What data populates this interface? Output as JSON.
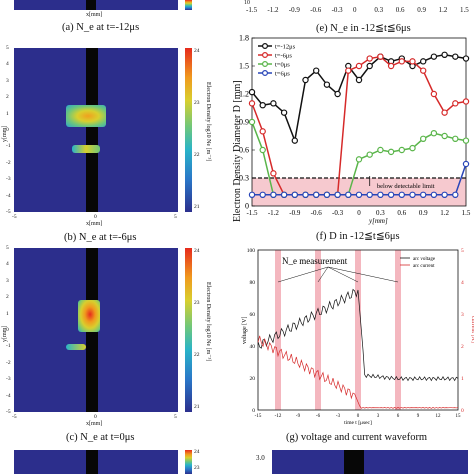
{
  "panel_a": {
    "caption": "(a) N_e at t=-12μs",
    "xaxis_label": "x[mm]"
  },
  "panel_b": {
    "caption": "(b) N_e at t=-6μs",
    "xaxis_label": "x[mm]",
    "yaxis_label": "y[mm]",
    "colorbar_label": "Electron Density log10 Ne [m⁻³]",
    "y_ticks": [
      "5",
      "4",
      "3",
      "2",
      "1",
      "0",
      "-1",
      "-2",
      "-3",
      "-4",
      "-5"
    ],
    "x_ticks": [
      "-5",
      "0",
      "5"
    ],
    "colorbar_ticks": [
      "24",
      "23",
      "22",
      "21"
    ]
  },
  "panel_c": {
    "caption": "(c) N_e at t=0μs",
    "xaxis_label": "x[mm]",
    "yaxis_label": "y[mm]",
    "colorbar_label": "Electron Density log10 Ne [m⁻³]",
    "y_ticks": [
      "5",
      "4",
      "3",
      "2",
      "1",
      "0",
      "-1",
      "-2",
      "-3",
      "-4",
      "-5"
    ],
    "x_ticks": [
      "-5",
      "0",
      "5"
    ],
    "colorbar_ticks": [
      "24",
      "23",
      "22",
      "21"
    ]
  },
  "panel_bottom_left": {
    "colorbar_ticks": [
      "24",
      "23"
    ]
  },
  "panel_e": {
    "caption": "(e) N_e in -12≦t≦6μs",
    "top_axis_ticks": [
      "-1.5",
      "-1.2",
      "-0.9",
      "-0.6",
      "-0.3",
      "0",
      "0.3",
      "0.6",
      "0.9",
      "1.2",
      "1.5"
    ],
    "top_exponent": "10"
  },
  "panel_f": {
    "caption": "(f) D in -12≦t≦6μs",
    "annotation": "below detectable limit"
  },
  "panel_g": {
    "caption": "(g) voltage and current waveform",
    "annotation": "N_e measurement",
    "ylabel_left": "voltage [V]",
    "ylabel_right": "current [A]",
    "xlabel": "time t [μsec]",
    "legend": [
      "arc voltage",
      "arc current"
    ],
    "y_ticks_left": [
      "0",
      "20",
      "40",
      "60",
      "80",
      "100"
    ],
    "y_ticks_right": [
      "0",
      "1",
      "2",
      "3",
      "4",
      "5"
    ],
    "x_ticks": [
      "-15",
      "-12",
      "-9",
      "-6",
      "-3",
      "0",
      "3",
      "6",
      "9",
      "12",
      "15"
    ]
  },
  "panel_h": {
    "y_tick": "3.0"
  },
  "chart_data": [
    {
      "type": "line",
      "ylabel": "Electron Density Diameter D [mm]",
      "xlabel": "y[mm]",
      "xlim": [
        -1.5,
        1.5
      ],
      "ylim": [
        0,
        1.8
      ],
      "x_ticks": [
        "-1.5",
        "-1.2",
        "-0.9",
        "-0.6",
        "-0.3",
        "0",
        "0.3",
        "0.6",
        "0.9",
        "1.2",
        "1.5"
      ],
      "y_ticks": [
        "0",
        "0.3",
        "0.6",
        "0.9",
        "1.2",
        "1.5",
        "1.8"
      ],
      "x": [
        -1.5,
        -1.35,
        -1.2,
        -1.05,
        -0.9,
        -0.75,
        -0.6,
        -0.45,
        -0.3,
        -0.15,
        0,
        0.15,
        0.3,
        0.45,
        0.6,
        0.75,
        0.9,
        1.05,
        1.2,
        1.35,
        1.5
      ],
      "threshold": 0.3,
      "series": [
        {
          "name": "t=-12μs",
          "color": "#111111",
          "values": [
            1.22,
            1.08,
            1.1,
            1.0,
            0.7,
            1.35,
            1.45,
            1.3,
            1.2,
            1.5,
            1.35,
            1.5,
            1.6,
            1.55,
            1.58,
            1.5,
            1.55,
            1.6,
            1.62,
            1.6,
            1.58
          ]
        },
        {
          "name": "t=-6μs",
          "color": "#d62a2a",
          "values": [
            1.1,
            0.8,
            0.35,
            0.12,
            0.12,
            0.12,
            0.12,
            0.12,
            0.12,
            1.45,
            1.5,
            1.58,
            1.6,
            1.5,
            1.55,
            1.55,
            1.45,
            1.2,
            1.0,
            1.1,
            1.12
          ]
        },
        {
          "name": "t=0μs",
          "color": "#5ab54a",
          "values": [
            0.9,
            0.6,
            0.12,
            0.12,
            0.12,
            0.12,
            0.12,
            0.12,
            0.12,
            0.12,
            0.5,
            0.55,
            0.6,
            0.58,
            0.6,
            0.62,
            0.72,
            0.78,
            0.75,
            0.72,
            0.7
          ]
        },
        {
          "name": "t=6μs",
          "color": "#2946b8",
          "values": [
            0.12,
            0.12,
            0.12,
            0.12,
            0.12,
            0.12,
            0.12,
            0.12,
            0.12,
            0.12,
            0.12,
            0.12,
            0.12,
            0.12,
            0.12,
            0.12,
            0.12,
            0.12,
            0.12,
            0.12,
            0.45
          ]
        }
      ]
    }
  ]
}
